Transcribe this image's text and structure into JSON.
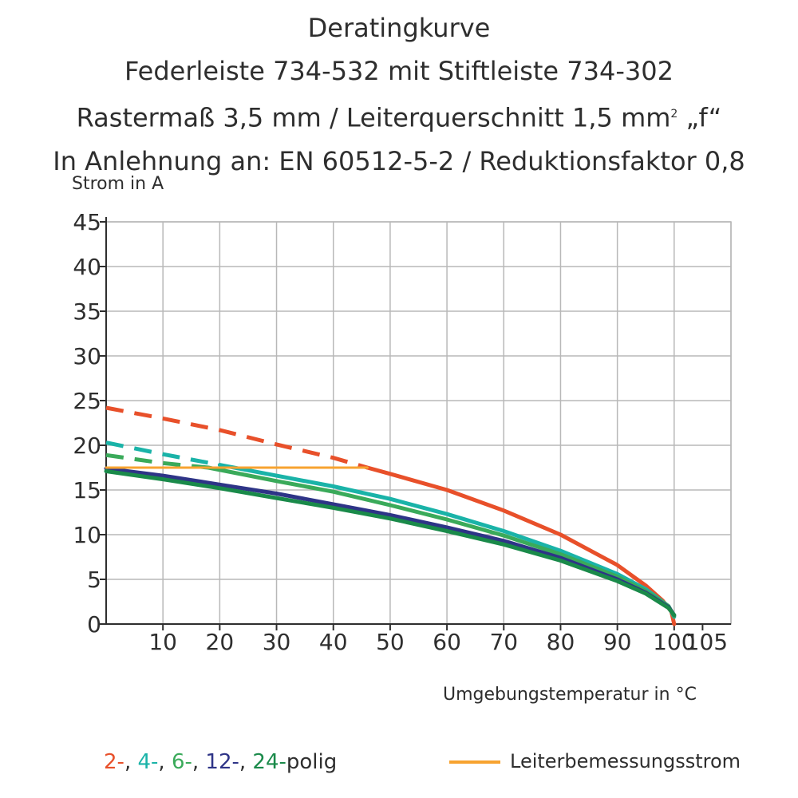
{
  "chart_data": {
    "type": "line",
    "title_lines": [
      "Deratingkurve",
      "Federleiste 734-532 mit Stiftleiste 734-302",
      "Rastermaß 3,5 mm / Leiterquerschnitt 1,5 mm",
      "In Anlehnung an: EN 60512-5-2 / Reduktionsfaktor 0,8"
    ],
    "title_line3_superscript": "2",
    "title_line3_suffix": " „f“",
    "ylabel": "Strom in A",
    "xlabel": "Umgebungstemperatur in  °C",
    "xlim": [
      0,
      110
    ],
    "ylim": [
      0,
      45
    ],
    "x_ticks": [
      10,
      20,
      30,
      40,
      50,
      60,
      70,
      80,
      90,
      100,
      105
    ],
    "y_ticks": [
      0,
      5,
      10,
      15,
      20,
      25,
      30,
      35,
      40,
      45
    ],
    "x_grid": [
      10,
      20,
      30,
      40,
      50,
      60,
      70,
      80,
      90,
      100,
      110
    ],
    "y_grid": [
      5,
      10,
      15,
      20,
      25,
      30,
      35,
      40,
      45
    ],
    "series": [
      {
        "name": "2-polig",
        "color": "#e8502a",
        "dashed": [
          [
            0,
            24.2
          ],
          [
            10,
            23.0
          ],
          [
            20,
            21.7
          ],
          [
            30,
            20.1
          ],
          [
            40,
            18.6
          ],
          [
            46,
            17.5
          ]
        ],
        "solid": [
          [
            46,
            17.5
          ],
          [
            50,
            16.8
          ],
          [
            60,
            15.0
          ],
          [
            70,
            12.7
          ],
          [
            80,
            10.0
          ],
          [
            90,
            6.6
          ],
          [
            95,
            4.3
          ],
          [
            98,
            2.6
          ],
          [
            99.5,
            1.4
          ],
          [
            100,
            0
          ]
        ]
      },
      {
        "name": "4-polig",
        "color": "#1ab3a8",
        "dashed": [
          [
            0,
            20.3
          ],
          [
            10,
            19.0
          ],
          [
            20,
            17.8
          ]
        ],
        "solid": [
          [
            20,
            17.8
          ],
          [
            30,
            16.6
          ],
          [
            40,
            15.4
          ],
          [
            50,
            14.0
          ],
          [
            60,
            12.3
          ],
          [
            70,
            10.4
          ],
          [
            80,
            8.2
          ],
          [
            90,
            5.6
          ],
          [
            95,
            3.9
          ],
          [
            99,
            2.0
          ],
          [
            100,
            0.8
          ]
        ]
      },
      {
        "name": "6-polig",
        "color": "#3aaa5a",
        "dashed": [
          [
            0,
            18.9
          ],
          [
            10,
            18.0
          ],
          [
            18,
            17.5
          ]
        ],
        "solid": [
          [
            18,
            17.5
          ],
          [
            30,
            16.0
          ],
          [
            40,
            14.8
          ],
          [
            50,
            13.3
          ],
          [
            60,
            11.7
          ],
          [
            70,
            9.9
          ],
          [
            80,
            7.8
          ],
          [
            90,
            5.3
          ],
          [
            95,
            3.7
          ],
          [
            99,
            2.0
          ],
          [
            100,
            0.9
          ]
        ]
      },
      {
        "name": "12-polig",
        "color": "#2e3487",
        "dashed": [],
        "solid": [
          [
            0,
            17.4
          ],
          [
            10,
            16.6
          ],
          [
            20,
            15.6
          ],
          [
            30,
            14.6
          ],
          [
            40,
            13.4
          ],
          [
            50,
            12.2
          ],
          [
            60,
            10.8
          ],
          [
            70,
            9.3
          ],
          [
            80,
            7.4
          ],
          [
            90,
            5.0
          ],
          [
            95,
            3.5
          ],
          [
            99,
            1.9
          ],
          [
            100,
            1.0
          ]
        ]
      },
      {
        "name": "24-polig",
        "color": "#1a8a4a",
        "dashed": [],
        "solid": [
          [
            0,
            17.1
          ],
          [
            10,
            16.2
          ],
          [
            20,
            15.2
          ],
          [
            30,
            14.1
          ],
          [
            40,
            13.0
          ],
          [
            50,
            11.8
          ],
          [
            60,
            10.4
          ],
          [
            70,
            8.9
          ],
          [
            80,
            7.1
          ],
          [
            90,
            4.8
          ],
          [
            95,
            3.4
          ],
          [
            99,
            1.8
          ],
          [
            100,
            1.0
          ]
        ]
      },
      {
        "name": "Leiterbemessungsstrom",
        "color": "#f7a330",
        "dashed": [],
        "solid": [
          [
            0,
            17.5
          ],
          [
            46,
            17.5
          ]
        ]
      }
    ],
    "legend": {
      "left_parts": [
        {
          "text": "2-",
          "color": "#e8502a"
        },
        {
          "text": ", ",
          "color": "#2e2e2e"
        },
        {
          "text": "4-",
          "color": "#1ab3a8"
        },
        {
          "text": ", ",
          "color": "#2e2e2e"
        },
        {
          "text": "6-",
          "color": "#3aaa5a"
        },
        {
          "text": ", ",
          "color": "#2e2e2e"
        },
        {
          "text": "12-",
          "color": "#2e3487"
        },
        {
          "text": ", ",
          "color": "#2e2e2e"
        },
        {
          "text": "24-",
          "color": "#1a8a4a"
        },
        {
          "text": "polig",
          "color": "#2e2e2e"
        }
      ],
      "right_label": "Leiterbemessungsstrom",
      "right_color": "#f7a330"
    }
  }
}
